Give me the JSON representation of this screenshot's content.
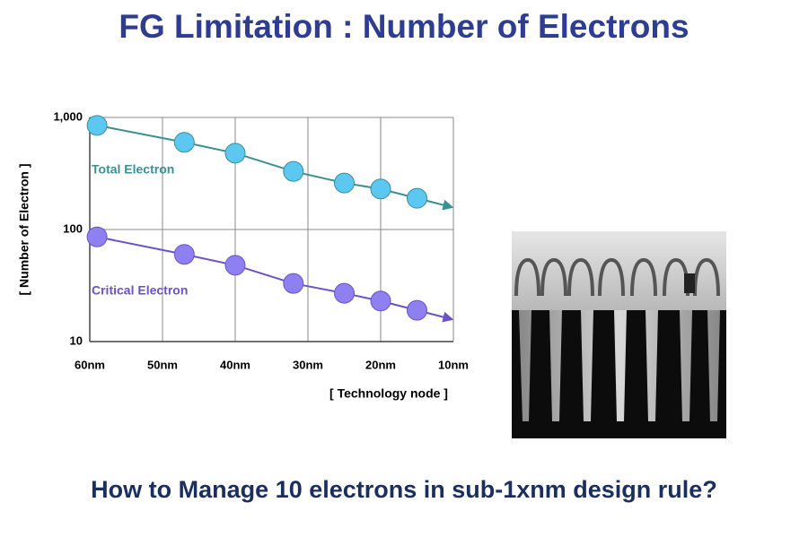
{
  "title": "FG Limitation : Number of Electrons",
  "chart_data": {
    "type": "line",
    "x": [
      59,
      47,
      40,
      32,
      25,
      20,
      15
    ],
    "series": [
      {
        "name": "Total Electron",
        "color": "#3a9090",
        "marker_color": "#5cc8f2",
        "values": [
          850,
          600,
          480,
          330,
          260,
          230,
          190
        ]
      },
      {
        "name": "Critical Electron",
        "color": "#6a52c8",
        "marker_color": "#8e80f0",
        "values": [
          86,
          60,
          48,
          33,
          27,
          23,
          19
        ]
      }
    ],
    "xlim": [
      60,
      10
    ],
    "xticks": [
      {
        "value": 60,
        "label": "60nm"
      },
      {
        "value": 50,
        "label": "50nm"
      },
      {
        "value": 40,
        "label": "40nm"
      },
      {
        "value": 30,
        "label": "30nm"
      },
      {
        "value": 20,
        "label": "20nm"
      },
      {
        "value": 10,
        "label": "10nm"
      }
    ],
    "ylim": [
      10,
      1000
    ],
    "yticks": [
      10,
      100,
      {
        "value": 1000,
        "label": "1,000"
      }
    ],
    "log_y": true,
    "grid": true,
    "y_label": "[ Number of Electron ]",
    "x_label": "[ Technology node ]"
  },
  "question": "How to Manage 10 electrons in sub-1xnm design rule?"
}
